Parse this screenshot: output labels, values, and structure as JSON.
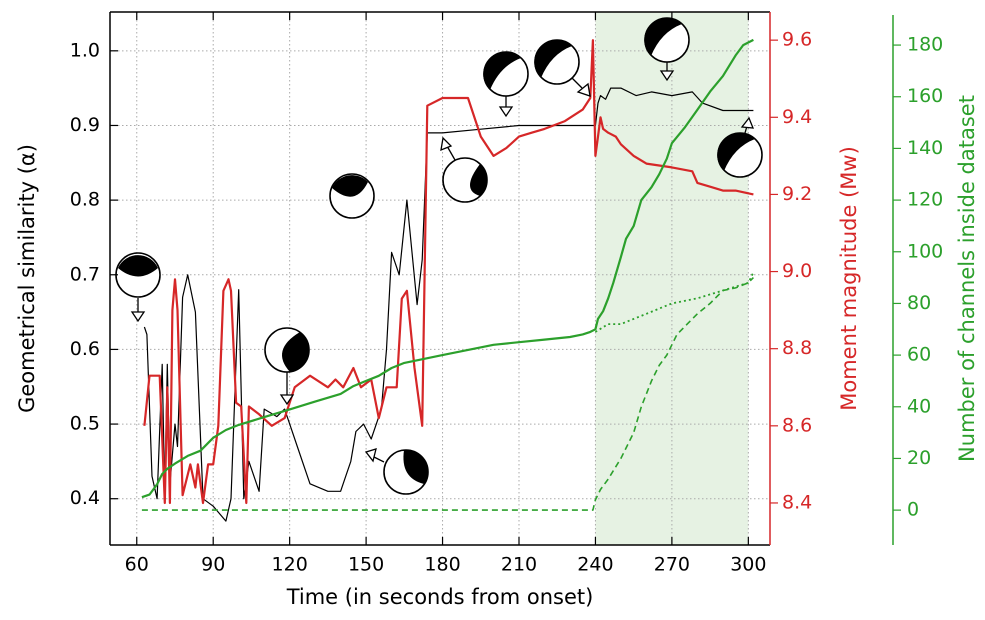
{
  "chart_data": {
    "type": "line",
    "x_label": "Time (in seconds from onset)",
    "y_label": "Geometrical similarity (α)",
    "y2_label": "Moment magnitude (Mw)",
    "y3_label": "Number of channels inside dataset",
    "xlim": [
      49.5,
      308.5
    ],
    "xticks": [
      60,
      90,
      120,
      150,
      180,
      210,
      240,
      270,
      300
    ],
    "ylim": [
      0.338,
      1.052
    ],
    "yticks": [
      0.4,
      0.5,
      0.6,
      0.7,
      0.8,
      0.9,
      {
        "value": 1.0,
        "label": "1.0"
      }
    ],
    "y2lim": [
      8.291,
      9.673
    ],
    "y2ticks": [
      8.4,
      8.6,
      8.8,
      {
        "value": 9.0,
        "label": "9.0"
      },
      9.2,
      9.4,
      9.6
    ],
    "y3lim": [
      -13.5,
      192.8
    ],
    "y3ticks": [
      0,
      20,
      40,
      60,
      80,
      100,
      120,
      140,
      160,
      180
    ],
    "axis_colors": {
      "y": "#000000",
      "y2": "#d62728",
      "y3": "#2ca02c"
    },
    "grid": true,
    "shaded_span": [
      240,
      300
    ],
    "shaded_color": "#e6f2e3",
    "series": [
      {
        "axis": "y",
        "color": "#000000",
        "style": "solid",
        "width": 1.2,
        "x": [
          63,
          64,
          66,
          68,
          70,
          71,
          72,
          73,
          75,
          76,
          78,
          80,
          83,
          86,
          90,
          95,
          97,
          100,
          102,
          104,
          108,
          110,
          115,
          118,
          120,
          123,
          128,
          135,
          140,
          142,
          144,
          146,
          149,
          152,
          156,
          158,
          160,
          163,
          166,
          170,
          172,
          174,
          180,
          195,
          210,
          230,
          238,
          240,
          241,
          242,
          244,
          246,
          250,
          256,
          262,
          270,
          278,
          282,
          290,
          302
        ],
        "values": [
          0.63,
          0.62,
          0.43,
          0.4,
          0.58,
          0.4,
          0.58,
          0.42,
          0.5,
          0.47,
          0.67,
          0.7,
          0.65,
          0.4,
          0.39,
          0.37,
          0.4,
          0.68,
          0.4,
          0.45,
          0.41,
          0.52,
          0.51,
          0.52,
          0.5,
          0.47,
          0.42,
          0.41,
          0.41,
          0.43,
          0.45,
          0.49,
          0.5,
          0.48,
          0.52,
          0.6,
          0.73,
          0.7,
          0.8,
          0.66,
          0.72,
          0.89,
          0.89,
          0.895,
          0.9,
          0.9,
          0.9,
          0.9,
          0.93,
          0.94,
          0.935,
          0.95,
          0.95,
          0.94,
          0.945,
          0.94,
          0.945,
          0.93,
          0.92,
          0.92
        ]
      },
      {
        "axis": "y2",
        "color": "#d62728",
        "style": "solid",
        "width": 2.2,
        "x": [
          63,
          65,
          67,
          69,
          71,
          72,
          73,
          74,
          75,
          76,
          78,
          81,
          83,
          84,
          86,
          88,
          90,
          92,
          94,
          96,
          97,
          99,
          101,
          103,
          104,
          108,
          113,
          118,
          122,
          128,
          135,
          138,
          141,
          145,
          148,
          152,
          155,
          158,
          162,
          164,
          166,
          169,
          172,
          174,
          180,
          190,
          195,
          200,
          205,
          210,
          215,
          220,
          228,
          235,
          238,
          239,
          240,
          241,
          242,
          243,
          245,
          248,
          250,
          255,
          260,
          270,
          278,
          280,
          285,
          290,
          295,
          302
        ],
        "values": [
          8.6,
          8.73,
          8.73,
          8.73,
          8.4,
          8.7,
          8.4,
          8.9,
          8.98,
          8.9,
          8.42,
          8.5,
          8.44,
          8.5,
          8.4,
          8.5,
          8.5,
          8.6,
          8.95,
          8.98,
          8.95,
          8.66,
          8.65,
          8.4,
          8.65,
          8.63,
          8.6,
          8.62,
          8.7,
          8.73,
          8.7,
          8.72,
          8.7,
          8.75,
          8.7,
          8.72,
          8.62,
          8.7,
          8.7,
          8.93,
          8.95,
          8.75,
          8.6,
          9.43,
          9.45,
          9.45,
          9.35,
          9.3,
          9.32,
          9.35,
          9.36,
          9.37,
          9.39,
          9.42,
          9.45,
          9.6,
          9.3,
          9.35,
          9.4,
          9.37,
          9.36,
          9.35,
          9.33,
          9.3,
          9.28,
          9.27,
          9.26,
          9.23,
          9.22,
          9.21,
          9.21,
          9.2
        ]
      },
      {
        "axis": "y3",
        "color": "#2ca02c",
        "style": "solid",
        "width": 2.2,
        "x": [
          62,
          65,
          68,
          70,
          72,
          75,
          80,
          85,
          90,
          95,
          100,
          110,
          120,
          130,
          140,
          145,
          150,
          155,
          160,
          165,
          170,
          180,
          190,
          200,
          210,
          220,
          230,
          235,
          238,
          240,
          241,
          243,
          245,
          247,
          250,
          252,
          255,
          258,
          262,
          265,
          268,
          270,
          275,
          280,
          285,
          290,
          295,
          298,
          302
        ],
        "values": [
          5,
          6,
          10,
          14,
          16,
          18,
          21,
          23,
          28,
          31,
          33,
          36,
          39,
          42,
          45,
          48,
          50,
          52,
          55,
          57,
          58,
          60,
          62,
          64,
          65,
          66,
          67,
          68,
          69,
          70,
          74,
          77,
          82,
          88,
          98,
          105,
          110,
          120,
          125,
          130,
          136,
          142,
          148,
          155,
          162,
          168,
          176,
          180,
          182
        ]
      },
      {
        "axis": "y3",
        "color": "#2ca02c",
        "style": "dotted",
        "width": 1.8,
        "x": [
          240,
          245,
          250,
          255,
          260,
          265,
          270,
          280,
          290,
          300,
          302
        ],
        "values": [
          69,
          72,
          72,
          74,
          76,
          78,
          80,
          82,
          85,
          88,
          92
        ]
      },
      {
        "axis": "y3",
        "color": "#2ca02c",
        "style": "dashed",
        "width": 1.6,
        "x": [
          62,
          239,
          240,
          242,
          245,
          250,
          255,
          258,
          262,
          265,
          268,
          272,
          276,
          280,
          285,
          290,
          295,
          300,
          302
        ],
        "values": [
          0,
          0,
          4,
          8,
          12,
          20,
          30,
          40,
          50,
          56,
          60,
          68,
          72,
          76,
          80,
          85,
          86,
          88,
          90
        ]
      }
    ]
  }
}
